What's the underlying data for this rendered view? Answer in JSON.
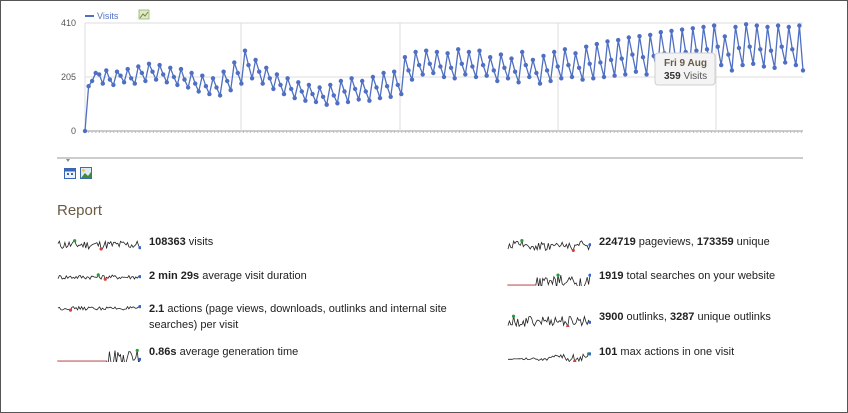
{
  "legend": {
    "series_label": "Visits",
    "export_icon": "image-export-icon"
  },
  "tooltip": {
    "date": "Fri 9 Aug",
    "value": "359",
    "unit": " Visits"
  },
  "toolbar": {
    "icons": [
      "calendar-export-icon",
      "image-export-icon"
    ]
  },
  "report": {
    "title": "Report",
    "left": [
      {
        "parts": [
          {
            "b": "108363"
          },
          {
            "t": " visits"
          }
        ]
      },
      {
        "parts": [
          {
            "b": "2 min 29s"
          },
          {
            "t": " average visit duration"
          }
        ]
      },
      {
        "parts": [
          {
            "b": "2.1"
          },
          {
            "t": " actions (page views, downloads, outlinks and internal site searches) per visit"
          }
        ]
      },
      {
        "parts": [
          {
            "b": "0.86s"
          },
          {
            "t": " average generation time"
          }
        ]
      }
    ],
    "right": [
      {
        "parts": [
          {
            "b": "224719"
          },
          {
            "t": " pageviews, "
          },
          {
            "b": "173359"
          },
          {
            "t": " unique"
          }
        ]
      },
      {
        "parts": [
          {
            "b": "1919"
          },
          {
            "t": " total searches on your website"
          }
        ]
      },
      {
        "parts": [
          {
            "b": "3900"
          },
          {
            "t": " outlinks, "
          },
          {
            "b": "3287"
          },
          {
            "t": " unique outlinks"
          }
        ]
      },
      {
        "parts": [
          {
            "b": "101"
          },
          {
            "t": " max actions in one visit"
          }
        ]
      }
    ]
  },
  "colors": {
    "series": "#4f6fc2",
    "accent_title": "#6b5a44",
    "grid": "#d8d8d8"
  },
  "chart_data": {
    "type": "line",
    "ylim": [
      0,
      410
    ],
    "y_ticks": [
      "0",
      "205",
      "410"
    ],
    "series": [
      {
        "name": "Visits",
        "values": [
          0,
          170,
          190,
          220,
          215,
          180,
          230,
          195,
          175,
          225,
          210,
          185,
          235,
          200,
          180,
          245,
          220,
          190,
          255,
          225,
          195,
          250,
          215,
          185,
          240,
          205,
          175,
          235,
          195,
          165,
          220,
          180,
          150,
          210,
          170,
          140,
          200,
          165,
          135,
          225,
          190,
          155,
          260,
          220,
          180,
          305,
          250,
          200,
          270,
          225,
          180,
          240,
          200,
          160,
          215,
          175,
          140,
          200,
          160,
          125,
          185,
          150,
          115,
          175,
          140,
          110,
          165,
          130,
          100,
          175,
          135,
          105,
          190,
          150,
          110,
          200,
          160,
          120,
          190,
          150,
          115,
          205,
          165,
          125,
          220,
          170,
          130,
          225,
          175,
          140,
          280,
          230,
          195,
          300,
          250,
          215,
          305,
          255,
          220,
          300,
          245,
          205,
          295,
          240,
          200,
          310,
          255,
          215,
          300,
          245,
          205,
          305,
          250,
          210,
          280,
          230,
          190,
          290,
          240,
          200,
          275,
          225,
          185,
          300,
          250,
          205,
          270,
          220,
          180,
          285,
          230,
          190,
          300,
          245,
          200,
          310,
          250,
          205,
          295,
          240,
          195,
          320,
          255,
          200,
          330,
          260,
          205,
          340,
          270,
          210,
          345,
          275,
          215,
          355,
          290,
          225,
          360,
          280,
          215,
          365,
          285,
          220,
          375,
          295,
          230,
          380,
          290,
          220,
          385,
          300,
          235,
          390,
          305,
          240,
          395,
          310,
          245,
          400,
          320,
          250,
          359,
          290,
          230,
          395,
          315,
          250,
          405,
          320,
          255,
          400,
          310,
          245,
          395,
          305,
          240,
          400,
          320,
          260,
          395,
          310,
          250,
          400,
          230
        ]
      }
    ],
    "highlight": {
      "label": "Fri 9 Aug",
      "value": 359
    }
  }
}
